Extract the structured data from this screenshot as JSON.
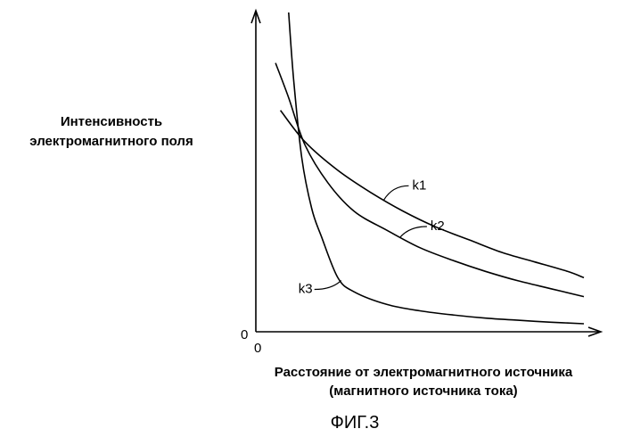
{
  "chart_data": {
    "type": "line",
    "title": "ФИГ.3",
    "ylabel_lines": [
      "Интенсивность",
      "электромагнитного поля"
    ],
    "xlabel_lines": [
      "Расстояние от электромагнитного источника",
      "(магнитного источника тока)"
    ],
    "x_origin_label": "0",
    "y_origin_label": "0",
    "xlim": [
      0,
      10
    ],
    "ylim": [
      0,
      10
    ],
    "grid": false,
    "legend": "none",
    "series": [
      {
        "name": "k1",
        "x": [
          0.75,
          1.5,
          2.5,
          3.5,
          4.5,
          5.5,
          6.5,
          7.5,
          8.5,
          9.5,
          10.0
        ],
        "y": [
          6.9,
          5.9,
          5.0,
          4.3,
          3.7,
          3.2,
          2.8,
          2.4,
          2.1,
          1.8,
          1.6
        ]
      },
      {
        "name": "k2",
        "x": [
          0.6,
          1.0,
          1.5,
          2.2,
          3.0,
          4.0,
          5.0,
          6.0,
          7.0,
          8.0,
          9.0,
          10.0
        ],
        "y": [
          8.4,
          7.3,
          5.8,
          4.6,
          3.7,
          3.1,
          2.55,
          2.15,
          1.8,
          1.5,
          1.25,
          1.0
        ]
      },
      {
        "name": "k3",
        "x": [
          1.0,
          1.15,
          1.4,
          1.7,
          2.0,
          2.5,
          3.0,
          4.0,
          5.0,
          6.0,
          7.0,
          8.0,
          9.0,
          10.0
        ],
        "y": [
          10.0,
          7.9,
          5.4,
          3.8,
          2.9,
          1.6,
          1.15,
          0.75,
          0.55,
          0.42,
          0.32,
          0.25,
          0.19,
          0.14
        ]
      }
    ],
    "annotations": [
      {
        "text": "k1",
        "series": "k1",
        "at_x": 3.9
      },
      {
        "text": "k2",
        "series": "k2",
        "at_x": 4.4
      },
      {
        "text": "k3",
        "series": "k3",
        "at_x": 2.6
      }
    ]
  }
}
